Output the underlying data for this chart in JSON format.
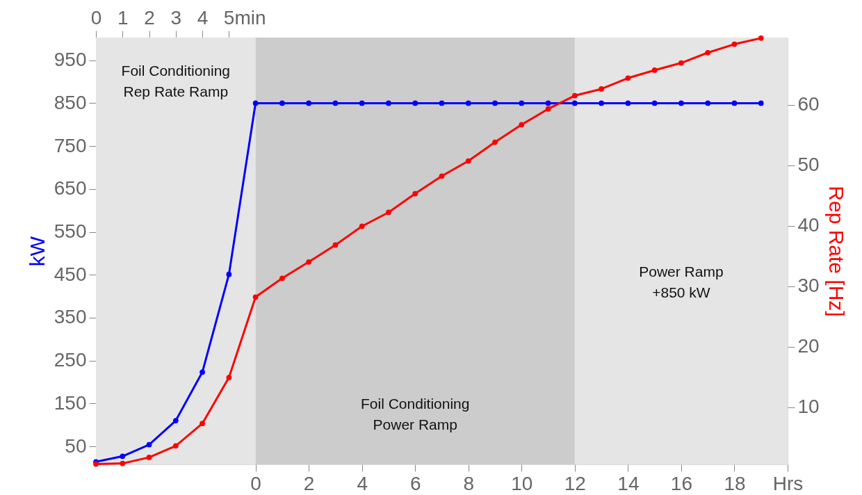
{
  "chart_data": {
    "type": "line",
    "ylabel": "kW",
    "y2label": "Rep Rate [Hz]",
    "marker": "circle",
    "line_style": "solid",
    "x": [
      -6,
      -5,
      -4,
      -3,
      -2,
      -1,
      0,
      1,
      2,
      3,
      4,
      5,
      6,
      7,
      8,
      9,
      10,
      11,
      12,
      13,
      14,
      15,
      16,
      17,
      18,
      19
    ],
    "series": [
      {
        "color": "#0000ff",
        "axis": "y",
        "values": [
          14,
          27,
          54,
          110,
          223,
          451,
          850,
          850,
          850,
          850,
          850,
          850,
          850,
          850,
          850,
          850,
          850,
          850,
          850,
          850,
          850,
          850,
          850,
          850,
          850,
          850
        ]
      },
      {
        "color": "#ff0000",
        "axis": "y2",
        "values": [
          0.6,
          0.7,
          1.7,
          3.6,
          7.3,
          14.9,
          28.2,
          31.3,
          34.0,
          36.8,
          39.9,
          42.2,
          45.3,
          48.2,
          50.7,
          53.8,
          56.7,
          59.3,
          61.5,
          62.6,
          64.4,
          65.7,
          66.9,
          68.6,
          70.0,
          71.0
        ]
      }
    ],
    "xlim": [
      -6,
      20
    ],
    "xticks": [
      0,
      2,
      4,
      6,
      8,
      10,
      12,
      14,
      16,
      18,
      {
        "value": 20,
        "label": "Hrs"
      }
    ],
    "x2lim": [
      0,
      26
    ],
    "x2ticks": [
      0,
      1,
      2,
      3,
      4,
      {
        "value": 5,
        "label": "5min"
      }
    ],
    "ylim": [
      8,
      1003
    ],
    "yticks": [
      50,
      150,
      250,
      350,
      450,
      550,
      650,
      750,
      850,
      950
    ],
    "y2lim": [
      0.54,
      71.1
    ],
    "y2ticks": [
      10,
      20,
      30,
      40,
      50,
      60
    ],
    "bands": [
      {
        "axis": "x",
        "from": -6,
        "to": 0,
        "label": "Foil Conditioning\nRep Rate Ramp",
        "color": "#e5e5e5"
      },
      {
        "axis": "x",
        "from": 0,
        "to": 12,
        "label": "Foil Conditioning\nPower Ramp",
        "color": "#cccccc"
      },
      {
        "axis": "x",
        "from": 12,
        "to": 20,
        "label": "Power Ramp\n+850 kW",
        "color": "#e5e5e5"
      }
    ]
  }
}
